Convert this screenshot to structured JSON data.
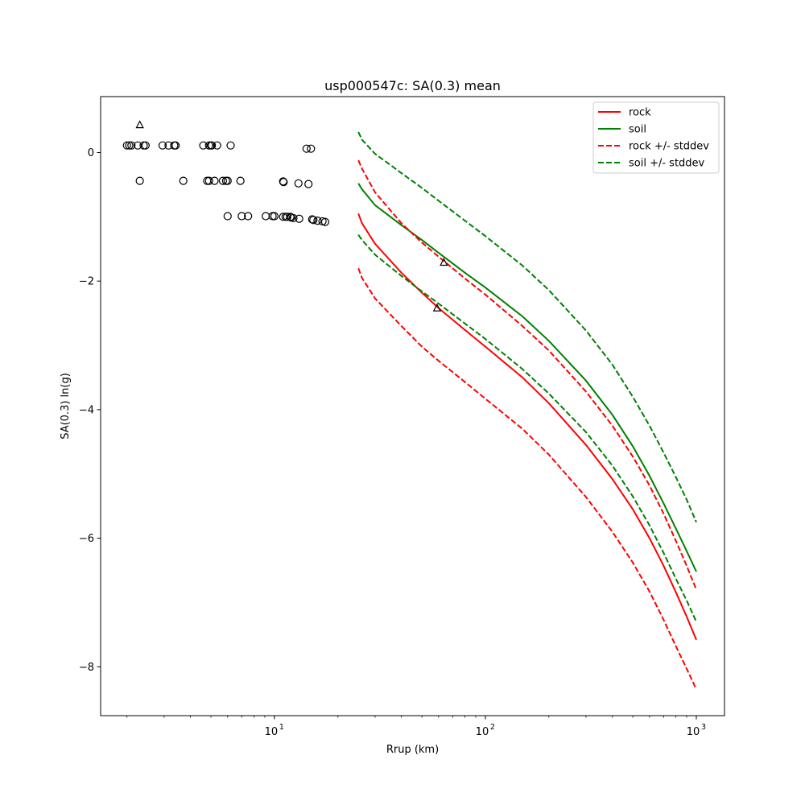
{
  "chart_data": {
    "type": "line",
    "title": "usp000547c: SA(0.3) mean",
    "xlabel": "Rrup (km)",
    "ylabel": "SA(0.3) ln(g)",
    "xscale": "log",
    "xlim": [
      1.5,
      1360
    ],
    "ylim": [
      -8.76,
      0.87
    ],
    "xticks": [
      {
        "value": 10,
        "base": "10",
        "exp": "1"
      },
      {
        "value": 100,
        "base": "10",
        "exp": "2"
      },
      {
        "value": 1000,
        "base": "10",
        "exp": "3"
      }
    ],
    "yticks": [
      {
        "value": 0,
        "label": "0"
      },
      {
        "value": -2,
        "label": "−2"
      },
      {
        "value": -4,
        "label": "−4"
      },
      {
        "value": -6,
        "label": "−6"
      },
      {
        "value": -8,
        "label": "−8"
      }
    ],
    "grid": false,
    "legend_position": "top-right",
    "series": [
      {
        "name": "rock",
        "color": "#ff0000",
        "dash": "solid",
        "x": [
          25,
          26,
          30,
          40,
          50,
          60,
          80,
          100,
          150,
          200,
          300,
          400,
          500,
          600,
          700,
          800,
          900,
          1000
        ],
        "y": [
          -0.95,
          -1.1,
          -1.42,
          -1.87,
          -2.18,
          -2.42,
          -2.76,
          -3.02,
          -3.5,
          -3.9,
          -4.55,
          -5.08,
          -5.55,
          -6.0,
          -6.43,
          -6.84,
          -7.22,
          -7.58
        ]
      },
      {
        "name": "soil",
        "color": "#008000",
        "dash": "solid",
        "x": [
          25,
          26,
          30,
          40,
          50,
          60,
          80,
          100,
          150,
          200,
          300,
          400,
          500,
          600,
          700,
          800,
          900,
          1000
        ],
        "y": [
          -0.48,
          -0.57,
          -0.82,
          -1.13,
          -1.36,
          -1.56,
          -1.87,
          -2.1,
          -2.55,
          -2.93,
          -3.55,
          -4.08,
          -4.57,
          -5.03,
          -5.46,
          -5.85,
          -6.2,
          -6.52
        ]
      },
      {
        "name": "rock +/- stddev",
        "color": "#ff0000",
        "dash": "dashed",
        "x": [
          25,
          26,
          30,
          40,
          50,
          60,
          80,
          100,
          150,
          200,
          300,
          400,
          500,
          600,
          700,
          800,
          900,
          1000
        ],
        "y": [
          -0.12,
          -0.25,
          -0.62,
          -1.1,
          -1.4,
          -1.62,
          -1.96,
          -2.21,
          -2.7,
          -3.08,
          -3.72,
          -4.25,
          -4.73,
          -5.18,
          -5.62,
          -6.04,
          -6.43,
          -6.8
        ]
      },
      {
        "name": "rock +/- stddev",
        "color": "#ff0000",
        "dash": "dashed",
        "x": [
          25,
          26,
          30,
          40,
          50,
          60,
          80,
          100,
          150,
          200,
          300,
          400,
          500,
          600,
          700,
          800,
          900,
          1000
        ],
        "y": [
          -1.8,
          -1.95,
          -2.27,
          -2.7,
          -3.02,
          -3.24,
          -3.57,
          -3.83,
          -4.3,
          -4.7,
          -5.36,
          -5.9,
          -6.38,
          -6.83,
          -7.27,
          -7.68,
          -8.03,
          -8.35
        ]
      },
      {
        "name": "soil +/- stddev",
        "color": "#008000",
        "dash": "dashed",
        "x": [
          25,
          26,
          30,
          40,
          50,
          60,
          80,
          100,
          150,
          200,
          300,
          400,
          500,
          600,
          700,
          800,
          900,
          1000
        ],
        "y": [
          0.32,
          0.2,
          -0.02,
          -0.32,
          -0.55,
          -0.75,
          -1.06,
          -1.3,
          -1.76,
          -2.14,
          -2.77,
          -3.3,
          -3.8,
          -4.25,
          -4.67,
          -5.05,
          -5.4,
          -5.75
        ]
      },
      {
        "name": "soil +/- stddev",
        "color": "#008000",
        "dash": "dashed",
        "x": [
          25,
          26,
          30,
          40,
          50,
          60,
          80,
          100,
          150,
          200,
          300,
          400,
          500,
          600,
          700,
          800,
          900,
          1000
        ],
        "y": [
          -1.28,
          -1.36,
          -1.59,
          -1.92,
          -2.16,
          -2.35,
          -2.66,
          -2.9,
          -3.37,
          -3.75,
          -4.35,
          -4.87,
          -5.35,
          -5.8,
          -6.23,
          -6.63,
          -6.97,
          -7.3
        ]
      }
    ],
    "legend": [
      {
        "label": "rock",
        "color": "#ff0000",
        "dash": "solid"
      },
      {
        "label": "soil",
        "color": "#008000",
        "dash": "solid"
      },
      {
        "label": "rock +/- stddev",
        "color": "#ff0000",
        "dash": "dashed"
      },
      {
        "label": "soil +/- stddev",
        "color": "#008000",
        "dash": "dashed"
      }
    ],
    "observations_circle": [
      [
        2.0,
        0.11
      ],
      [
        2.05,
        0.11
      ],
      [
        2.1,
        0.11
      ],
      [
        2.25,
        0.11
      ],
      [
        2.4,
        0.11
      ],
      [
        2.45,
        0.11
      ],
      [
        2.95,
        0.11
      ],
      [
        3.15,
        0.11
      ],
      [
        3.35,
        0.11
      ],
      [
        3.4,
        0.11
      ],
      [
        4.6,
        0.11
      ],
      [
        4.9,
        0.11
      ],
      [
        5.0,
        0.11
      ],
      [
        5.05,
        0.11
      ],
      [
        5.35,
        0.11
      ],
      [
        6.2,
        0.11
      ],
      [
        14.2,
        0.06
      ],
      [
        14.9,
        0.06
      ],
      [
        2.3,
        -0.44
      ],
      [
        3.7,
        -0.44
      ],
      [
        4.8,
        -0.44
      ],
      [
        4.9,
        -0.44
      ],
      [
        5.2,
        -0.44
      ],
      [
        5.7,
        -0.44
      ],
      [
        5.9,
        -0.44
      ],
      [
        6.0,
        -0.44
      ],
      [
        6.9,
        -0.44
      ],
      [
        11.0,
        -0.45
      ],
      [
        11.05,
        -0.46
      ],
      [
        13.0,
        -0.48
      ],
      [
        14.5,
        -0.49
      ],
      [
        6.0,
        -0.99
      ],
      [
        7.0,
        -0.99
      ],
      [
        7.5,
        -0.99
      ],
      [
        9.1,
        -0.99
      ],
      [
        9.8,
        -0.99
      ],
      [
        10.0,
        -0.99
      ],
      [
        11.0,
        -1.0
      ],
      [
        11.3,
        -1.0
      ],
      [
        11.5,
        -1.0
      ],
      [
        11.9,
        -1.0
      ],
      [
        12.0,
        -1.01
      ],
      [
        12.3,
        -1.02
      ],
      [
        13.1,
        -1.03
      ],
      [
        15.1,
        -1.04
      ],
      [
        15.3,
        -1.05
      ],
      [
        16.0,
        -1.06
      ],
      [
        16.9,
        -1.07
      ],
      [
        17.4,
        -1.08
      ]
    ],
    "observations_triangle": [
      [
        2.3,
        0.43
      ],
      [
        59,
        -2.42
      ],
      [
        63.5,
        -1.71
      ]
    ],
    "point_color": "#000000"
  }
}
